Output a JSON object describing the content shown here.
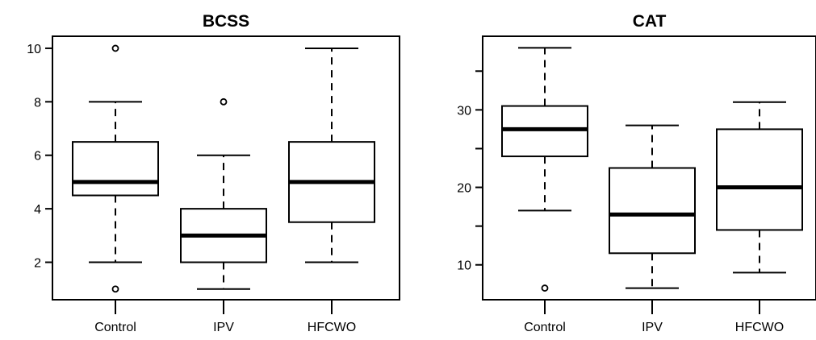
{
  "chart_data": [
    {
      "type": "box",
      "title": "BCSS",
      "categories": [
        "Control",
        "IPV",
        "HFCWO"
      ],
      "ylim": [
        0.6,
        10.45
      ],
      "yticks": [
        2,
        4,
        6,
        8,
        10
      ],
      "grid": false,
      "boxes": [
        {
          "category": "Control",
          "whisker_low": 2,
          "q1": 4.5,
          "median": 5,
          "q3": 6.5,
          "whisker_high": 8,
          "outliers": [
            1,
            10
          ]
        },
        {
          "category": "IPV",
          "whisker_low": 1,
          "q1": 2,
          "median": 3,
          "q3": 4,
          "whisker_high": 6,
          "outliers": [
            8
          ]
        },
        {
          "category": "HFCWO",
          "whisker_low": 2,
          "q1": 3.5,
          "median": 5,
          "q3": 6.5,
          "whisker_high": 10,
          "outliers": []
        }
      ]
    },
    {
      "type": "box",
      "title": "CAT",
      "categories": [
        "Control",
        "IPV",
        "HFCWO"
      ],
      "ylim": [
        5.5,
        39.5
      ],
      "yticks": [
        10,
        20,
        30
      ],
      "minor_yticks": [
        15,
        25,
        35
      ],
      "grid": false,
      "boxes": [
        {
          "category": "Control",
          "whisker_low": 17,
          "q1": 24,
          "median": 27.5,
          "q3": 30.5,
          "whisker_high": 38,
          "outliers": [
            7
          ]
        },
        {
          "category": "IPV",
          "whisker_low": 7,
          "q1": 11.5,
          "median": 16.5,
          "q3": 22.5,
          "whisker_high": 28,
          "outliers": []
        },
        {
          "category": "HFCWO",
          "whisker_low": 9,
          "q1": 14.5,
          "median": 20,
          "q3": 27.5,
          "whisker_high": 31,
          "outliers": []
        }
      ]
    }
  ]
}
